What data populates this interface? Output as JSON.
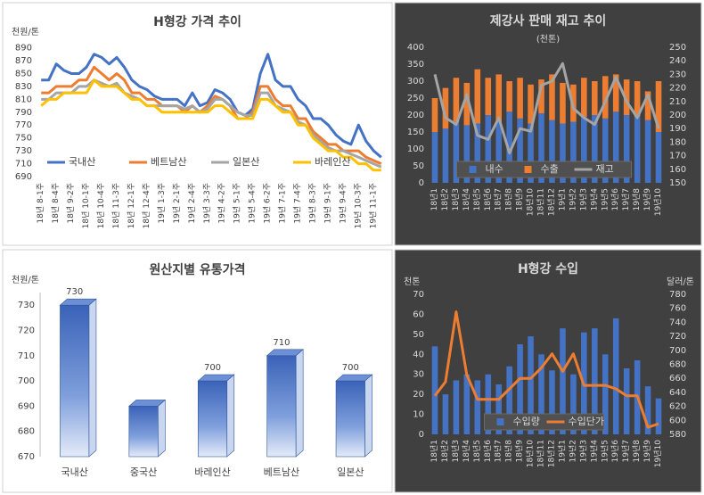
{
  "chart_data": [
    {
      "type": "line",
      "title": "H형강 가격 추이",
      "y_label": "천원/톤",
      "background": "#ffffff",
      "legend": "bottom",
      "categories": [
        "18년 8-1주",
        null,
        "18년 8-4주",
        null,
        "18년 9-2주",
        null,
        "18년 10-1주",
        null,
        "18년 10-4주",
        null,
        "18년 11-3주",
        null,
        "18년 12-1주",
        null,
        "18년 12-4주",
        null,
        "19년 1-3주",
        null,
        "19년 2-1주",
        null,
        "19년 2-4주",
        null,
        "19년 3-3주",
        null,
        "19년 4-2주",
        null,
        "19년 5-1주",
        null,
        "19년 5-4주",
        null,
        "19년 6-2주",
        null,
        "19년 7-1주",
        null,
        "19년 7-4주",
        null,
        "19년 8-3주",
        null,
        "19년 9-1주",
        null,
        "19년 9-4주",
        null,
        "19년 10-3주",
        null,
        "19년 11-1주",
        null
      ],
      "ylim": [
        690,
        895
      ],
      "yticks": [
        690,
        710,
        730,
        750,
        770,
        790,
        810,
        830,
        850,
        870,
        890
      ],
      "series": [
        {
          "name": "국내산",
          "color": "#4472c4",
          "values": [
            840,
            840,
            865,
            855,
            850,
            850,
            860,
            880,
            875,
            865,
            875,
            860,
            840,
            830,
            825,
            815,
            810,
            810,
            810,
            800,
            820,
            800,
            805,
            825,
            820,
            810,
            790,
            785,
            795,
            850,
            880,
            840,
            830,
            830,
            810,
            800,
            780,
            780,
            770,
            755,
            745,
            740,
            770,
            745,
            730,
            720
          ]
        },
        {
          "name": "베트남산",
          "color": "#ed7d31",
          "values": [
            820,
            820,
            830,
            830,
            830,
            840,
            840,
            860,
            850,
            840,
            850,
            840,
            820,
            820,
            810,
            810,
            800,
            800,
            800,
            790,
            800,
            790,
            800,
            815,
            810,
            800,
            780,
            780,
            790,
            830,
            830,
            810,
            800,
            800,
            780,
            780,
            760,
            750,
            740,
            740,
            730,
            730,
            730,
            720,
            715,
            710
          ]
        },
        {
          "name": "일본산",
          "color": "#a5a5a5",
          "values": [
            810,
            810,
            820,
            820,
            820,
            830,
            830,
            840,
            835,
            830,
            835,
            820,
            815,
            810,
            800,
            800,
            800,
            800,
            800,
            795,
            800,
            790,
            795,
            810,
            810,
            800,
            790,
            785,
            785,
            820,
            820,
            800,
            795,
            790,
            775,
            770,
            755,
            745,
            735,
            730,
            730,
            725,
            720,
            715,
            710,
            705
          ]
        },
        {
          "name": "바레인산",
          "color": "#ffc000",
          "values": [
            800,
            810,
            810,
            820,
            820,
            820,
            820,
            840,
            830,
            830,
            830,
            820,
            810,
            810,
            800,
            800,
            790,
            790,
            790,
            790,
            790,
            790,
            790,
            800,
            800,
            790,
            780,
            780,
            780,
            810,
            810,
            800,
            790,
            790,
            770,
            770,
            750,
            740,
            730,
            730,
            720,
            720,
            710,
            710,
            700,
            700
          ]
        }
      ]
    },
    {
      "type": "bar",
      "stacked": true,
      "title": "제강사 판매 재고 추이",
      "subtitle": "(천톤)",
      "background": "#404040",
      "legend": "bottom",
      "categories": [
        "18년1",
        "18년2",
        "18년3",
        "18년4",
        "18년5",
        "18년6",
        "18년7",
        "18년8",
        "18년9",
        "18년10",
        "18년11",
        "18년12",
        "19년1",
        "19년2",
        "19년3",
        "19년4",
        "19년5",
        "19년6",
        "19년7",
        "19년8",
        "19년9",
        "19년10"
      ],
      "ylim": [
        0,
        400
      ],
      "yticks": [
        0,
        50,
        100,
        150,
        200,
        250,
        300,
        350,
        400
      ],
      "y2lim": [
        150,
        250
      ],
      "y2ticks": [
        150,
        160,
        170,
        180,
        190,
        200,
        210,
        220,
        230,
        240,
        250
      ],
      "series": [
        {
          "name": "내수",
          "color": "#4472c4",
          "values": [
            150,
            160,
            180,
            170,
            175,
            200,
            180,
            210,
            190,
            175,
            205,
            185,
            175,
            180,
            195,
            200,
            190,
            210,
            200,
            195,
            185,
            150
          ]
        },
        {
          "name": "수출",
          "color": "#ed7d31",
          "values": [
            100,
            120,
            130,
            125,
            160,
            110,
            140,
            90,
            120,
            115,
            100,
            135,
            120,
            110,
            115,
            100,
            125,
            110,
            105,
            105,
            85,
            150
          ]
        },
        {
          "name": "재고",
          "color": "#a5a5a5",
          "type": "line",
          "axis": "y2",
          "values": [
            230,
            198,
            193,
            215,
            185,
            182,
            198,
            172,
            190,
            188,
            222,
            225,
            238,
            205,
            198,
            193,
            210,
            228,
            210,
            198,
            215,
            190
          ]
        }
      ]
    },
    {
      "type": "bar3d",
      "title": "원산지별 유통가격",
      "y_label": "천원/톤",
      "background": "#ffffff",
      "categories": [
        "국내산",
        "중국산",
        "바레인산",
        "베트남산",
        "일본산"
      ],
      "ylim": [
        670,
        735
      ],
      "yticks": [
        670,
        680,
        690,
        700,
        710,
        720,
        730
      ],
      "series": [
        {
          "name": "유통가격",
          "color": "#4472c4",
          "values": [
            730,
            690,
            700,
            710,
            700
          ],
          "value_labels": [
            "730",
            null,
            "700",
            "710",
            "700"
          ]
        }
      ]
    },
    {
      "type": "bar",
      "title": "H형강 수입",
      "y_label": "천톤",
      "y2_label": "달러/톤",
      "background": "#404040",
      "legend": "bottom",
      "categories": [
        "18년1",
        "18년2",
        "18년3",
        "18년4",
        "18년5",
        "18년6",
        "18년7",
        "18년8",
        "18년9",
        "18년10",
        "18년11",
        "18년12",
        "19년1",
        "19년2",
        "19년3",
        "19년4",
        "19년5",
        "19년6",
        "19년7",
        "19년8",
        "19년9",
        "19년10"
      ],
      "ylim": [
        0,
        70
      ],
      "yticks": [
        0,
        10,
        20,
        30,
        40,
        50,
        60,
        70
      ],
      "y2lim": [
        580,
        780
      ],
      "y2ticks": [
        580,
        600,
        620,
        640,
        660,
        680,
        700,
        720,
        740,
        760,
        780
      ],
      "series": [
        {
          "name": "수입량",
          "color": "#4472c4",
          "values": [
            44,
            20,
            27,
            30,
            27,
            30,
            25,
            34,
            45,
            49,
            40,
            32,
            53,
            30,
            51,
            53,
            40,
            58,
            33,
            37,
            24,
            18
          ]
        },
        {
          "name": "수입단가",
          "color": "#ed7d31",
          "type": "line",
          "axis": "y2",
          "values": [
            635,
            655,
            755,
            665,
            630,
            630,
            630,
            645,
            660,
            660,
            675,
            695,
            670,
            695,
            650,
            650,
            650,
            645,
            635,
            635,
            590,
            595
          ]
        }
      ]
    }
  ]
}
